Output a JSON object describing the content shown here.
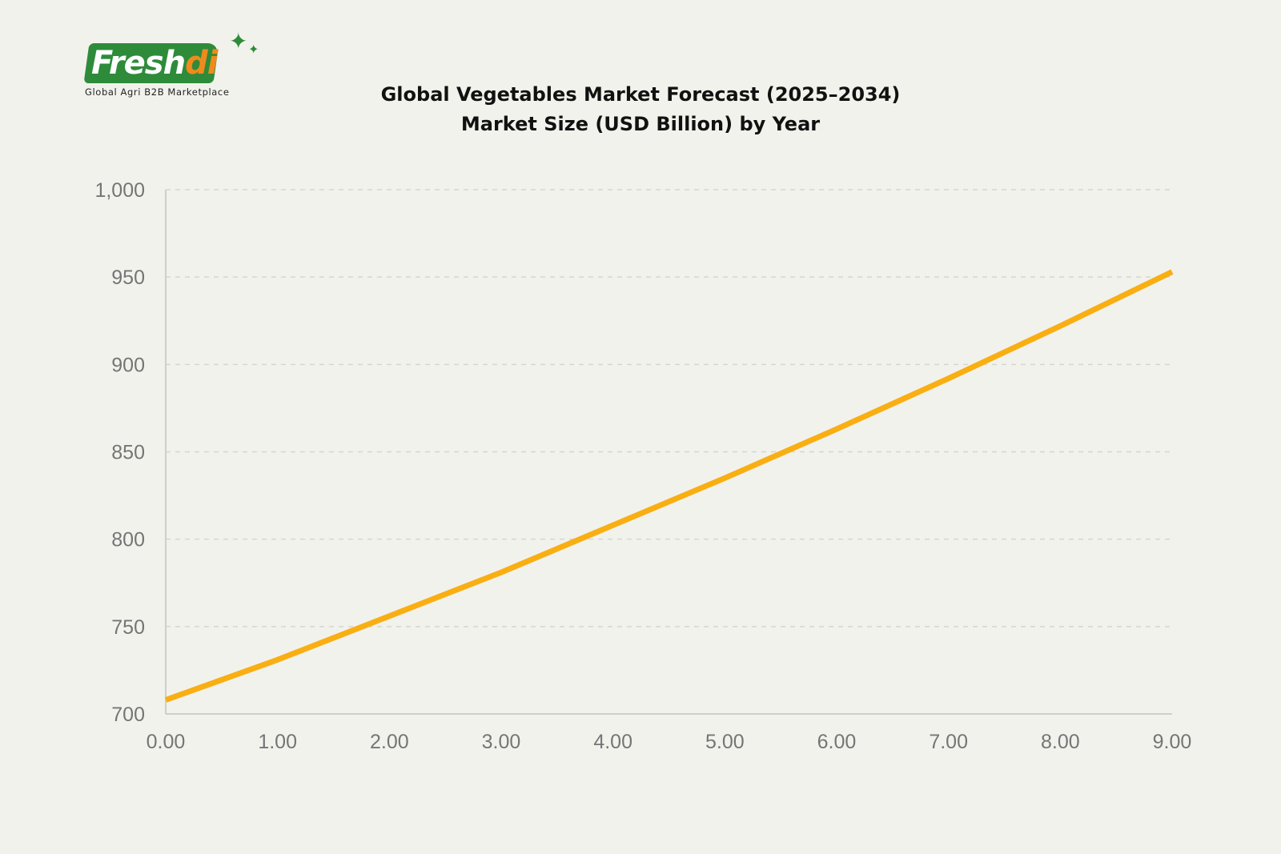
{
  "logo": {
    "word_main": "Fresh",
    "word_accent": "di",
    "tagline": "Global Agri B2B Marketplace",
    "icon": "sparkle-icon"
  },
  "colors": {
    "background": "#f2f2ed",
    "brand_green": "#2e8b3a",
    "brand_orange": "#f08a1c",
    "line": "#f9ae12",
    "grid": "#d6d6d0",
    "tick_text": "#757575"
  },
  "chart_data": {
    "type": "line",
    "title": "Global Vegetables Market Forecast (2025–2034)",
    "subtitle": "Market Size (USD Billion) by Year",
    "xlabel": "",
    "ylabel": "",
    "xlim": [
      0,
      9
    ],
    "ylim": [
      700,
      1000
    ],
    "x_ticks": [
      "0.00",
      "1.00",
      "2.00",
      "3.00",
      "4.00",
      "5.00",
      "6.00",
      "7.00",
      "8.00",
      "9.00"
    ],
    "y_ticks": [
      "700",
      "750",
      "800",
      "850",
      "900",
      "950",
      "1,000"
    ],
    "grid": "horizontal dashed",
    "legend": "none",
    "series": [
      {
        "x": [
          0,
          1,
          2,
          3,
          4,
          5,
          6,
          7,
          8,
          9
        ],
        "values": [
          708,
          731,
          756,
          781,
          808,
          835,
          863,
          892,
          922,
          953
        ]
      }
    ]
  }
}
